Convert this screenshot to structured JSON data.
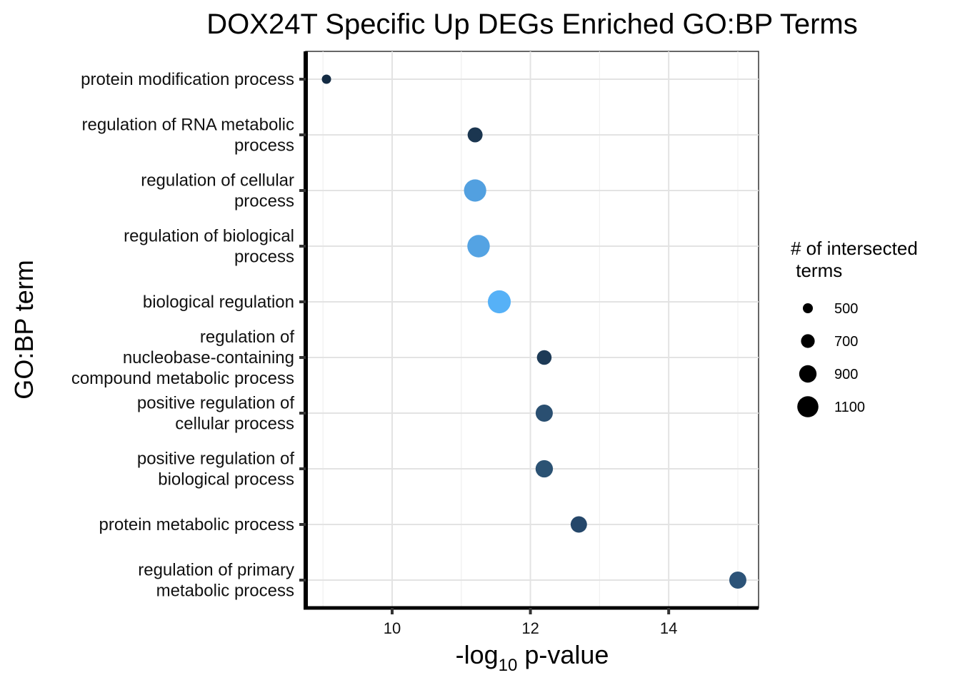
{
  "chart_data": {
    "type": "scatter",
    "title": "DOX24T Specific Up DEGs Enriched GO:BP Terms",
    "xlabel_main": "-log",
    "xlabel_sub": "10",
    "xlabel_rest": " p-value",
    "ylabel": "GO:BP term",
    "xlim": [
      8.75,
      15.3
    ],
    "xticks": [
      10,
      12,
      14
    ],
    "xtick_labels": [
      "10",
      "12",
      "14"
    ],
    "grid": true,
    "categories": [
      {
        "lines": [
          "protein modification process"
        ]
      },
      {
        "lines": [
          "regulation of RNA metabolic",
          "process"
        ]
      },
      {
        "lines": [
          "regulation of cellular",
          "process"
        ]
      },
      {
        "lines": [
          "regulation of biological",
          "process"
        ]
      },
      {
        "lines": [
          "biological regulation"
        ]
      },
      {
        "lines": [
          "regulation of",
          "nucleobase-containing",
          "compound metabolic process"
        ]
      },
      {
        "lines": [
          "positive regulation of",
          "cellular process"
        ]
      },
      {
        "lines": [
          "positive regulation of",
          "biological process"
        ]
      },
      {
        "lines": [
          "protein metabolic process"
        ]
      },
      {
        "lines": [
          "regulation of primary",
          "metabolic process"
        ]
      }
    ],
    "points": [
      {
        "x": 9.05,
        "size": 200,
        "color": "#132B43"
      },
      {
        "x": 11.2,
        "size": 520,
        "color": "#1B3650"
      },
      {
        "x": 11.2,
        "size": 1150,
        "color": "#52A0E0"
      },
      {
        "x": 11.25,
        "size": 1170,
        "color": "#54A3E3"
      },
      {
        "x": 11.55,
        "size": 1220,
        "color": "#56B1F7"
      },
      {
        "x": 12.2,
        "size": 500,
        "color": "#1E3B57"
      },
      {
        "x": 12.2,
        "size": 680,
        "color": "#2A4F71"
      },
      {
        "x": 12.2,
        "size": 700,
        "color": "#2B5273"
      },
      {
        "x": 12.7,
        "size": 620,
        "color": "#25476A"
      },
      {
        "x": 15.0,
        "size": 680,
        "color": "#2C5378"
      }
    ],
    "legend": {
      "title_lines": [
        "# of intersected",
        " terms"
      ],
      "placement": "right",
      "entries": [
        {
          "label": "500",
          "value": 500
        },
        {
          "label": "700",
          "value": 700
        },
        {
          "label": "900",
          "value": 900
        },
        {
          "label": "1100",
          "value": 1100
        }
      ]
    }
  }
}
